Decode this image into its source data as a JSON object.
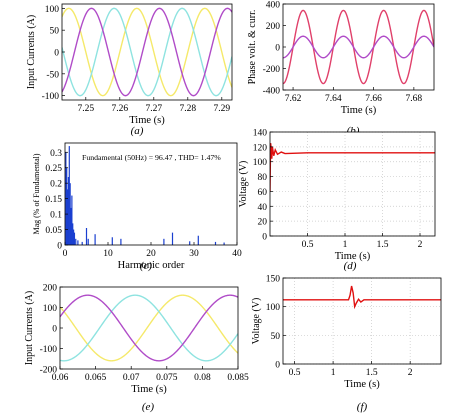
{
  "figure": {
    "panels": [
      {
        "id": "a",
        "caption": "(a)",
        "xlabel": "Time (s)",
        "ylabel": "Input Currents (A)"
      },
      {
        "id": "b",
        "caption": "(b)",
        "xlabel": "Time (s)",
        "ylabel": "Phase volt. & curr."
      },
      {
        "id": "c",
        "caption": "(c)",
        "xlabel": "Harmonic order",
        "ylabel": "Mag (% of Fundamental)",
        "annotation": "Fundamental (50Hz) = 96.47 , THD= 1.47%"
      },
      {
        "id": "d",
        "caption": "(d)",
        "xlabel": "Time (s)",
        "ylabel": "Voltage (V)"
      },
      {
        "id": "e",
        "caption": "(e)",
        "xlabel": "Time (s)",
        "ylabel": "Input Currents (A)"
      },
      {
        "id": "f",
        "caption": "(f)",
        "xlabel": "Time (s)",
        "ylabel": "Voltage (V)"
      }
    ]
  },
  "chart_data": [
    {
      "panel": "a",
      "type": "line",
      "xlim": [
        7.243,
        7.293
      ],
      "ylim": [
        -110,
        110
      ],
      "xticks": [
        7.25,
        7.26,
        7.27,
        7.28,
        7.29
      ],
      "xtick_labels": [
        "7.25",
        "7.26",
        "7.27",
        "7.28",
        "7.29"
      ],
      "yticks": [
        -100,
        -50,
        0,
        50,
        100
      ],
      "ytick_labels": [
        "-100",
        "-50",
        "0",
        "50",
        "100"
      ],
      "grid": false,
      "series": [
        {
          "color": "#f5e96a",
          "amplitude": 100,
          "frequency_hz": 50,
          "phase_deg": 0
        },
        {
          "color": "#8ee3e0",
          "amplitude": 100,
          "frequency_hz": 50,
          "phase_deg": 120
        },
        {
          "color": "#b04cc8",
          "amplitude": 100,
          "frequency_hz": 50,
          "phase_deg": -120
        }
      ]
    },
    {
      "panel": "b",
      "type": "line",
      "xlim": [
        7.615,
        7.69
      ],
      "ylim": [
        -400,
        400
      ],
      "xticks": [
        7.62,
        7.64,
        7.66,
        7.68
      ],
      "xtick_labels": [
        "7.62",
        "7.64",
        "7.66",
        "7.68"
      ],
      "yticks": [
        -400,
        -200,
        0,
        200,
        400
      ],
      "ytick_labels": [
        "-400",
        "-200",
        "0",
        "200",
        "400"
      ],
      "grid": false,
      "series": [
        {
          "color": "#e0406a",
          "amplitude": 340,
          "frequency_hz": 50,
          "phase_deg": 0
        },
        {
          "color": "#b04cc8",
          "amplitude": 100,
          "frequency_hz": 50,
          "phase_deg": 0
        }
      ]
    },
    {
      "panel": "c",
      "type": "bar",
      "xlim": [
        0,
        40
      ],
      "ylim": [
        0,
        0.33
      ],
      "xticks": [
        0,
        10,
        20,
        30,
        40
      ],
      "xtick_labels": [
        "0",
        "10",
        "20",
        "30",
        "40"
      ],
      "yticks": [
        0,
        0.05,
        0.1,
        0.15,
        0.2,
        0.25,
        0.3
      ],
      "ytick_labels": [
        "0",
        "0.05",
        "0.1",
        "0.15",
        "0.2",
        "0.25",
        "0.3"
      ],
      "grid": false,
      "color": "#1a3fd0",
      "x": [
        0.2,
        0.4,
        0.6,
        0.8,
        1.0,
        1.2,
        1.4,
        1.6,
        1.8,
        2.0,
        2.2,
        2.5,
        3.0,
        4.0,
        5.0,
        5.4,
        7.0,
        11.0,
        13.0,
        23.0,
        25.0,
        29.0,
        31.0,
        35.0,
        37.0
      ],
      "values": [
        0.3,
        0.25,
        0.18,
        0.22,
        0.32,
        0.2,
        0.12,
        0.16,
        0.07,
        0.05,
        0.04,
        0.02,
        0.015,
        0.01,
        0.055,
        0.02,
        0.035,
        0.025,
        0.02,
        0.02,
        0.04,
        0.012,
        0.03,
        0.01,
        0.008
      ]
    },
    {
      "panel": "d",
      "type": "line",
      "xlim": [
        0,
        2.2
      ],
      "ylim": [
        0,
        140
      ],
      "xticks": [
        0.5,
        1.0,
        1.5,
        2.0
      ],
      "xtick_labels": [
        "0.5",
        "1",
        "1.5",
        "2"
      ],
      "yticks": [
        0,
        20,
        40,
        60,
        80,
        100,
        120,
        140
      ],
      "ytick_labels": [
        "0",
        "20",
        "40",
        "60",
        "80",
        "100",
        "120",
        "140"
      ],
      "grid": true,
      "series": [
        {
          "color": "#e01010",
          "x": [
            0.0,
            0.008,
            0.016,
            0.024,
            0.032,
            0.05,
            0.07,
            0.1,
            0.15,
            0.2,
            0.5,
            1.0,
            1.5,
            2.0,
            2.2
          ],
          "y": [
            60,
            125,
            118,
            104,
            120,
            108,
            116,
            110,
            113,
            111,
            112,
            112,
            112,
            112,
            112
          ]
        }
      ]
    },
    {
      "panel": "e",
      "type": "line",
      "xlim": [
        0.06,
        0.085
      ],
      "ylim": [
        -200,
        200
      ],
      "xticks": [
        0.06,
        0.065,
        0.07,
        0.075,
        0.08,
        0.085
      ],
      "xtick_labels": [
        "0.06",
        "0.065",
        "0.07",
        "0.075",
        "0.08",
        "0.085"
      ],
      "yticks": [
        -200,
        -100,
        0,
        100,
        200
      ],
      "ytick_labels": [
        "-200",
        "-100",
        "0",
        "100",
        "200"
      ],
      "grid": false,
      "series": [
        {
          "color": "#f5e96a",
          "amplitude": 160,
          "frequency_hz": 50,
          "phase_deg": 140
        },
        {
          "color": "#8ee3e0",
          "amplitude": 160,
          "frequency_hz": 50,
          "phase_deg": 260
        },
        {
          "color": "#b04cc8",
          "amplitude": 160,
          "frequency_hz": 50,
          "phase_deg": 20
        }
      ]
    },
    {
      "panel": "f",
      "type": "line",
      "xlim": [
        0.35,
        2.4
      ],
      "ylim": [
        0,
        150
      ],
      "xticks": [
        0.5,
        1.0,
        1.5,
        2.0
      ],
      "xtick_labels": [
        "0.5",
        "1",
        "1.5",
        "2"
      ],
      "yticks": [
        0,
        50,
        100,
        150
      ],
      "ytick_labels": [
        "0",
        "50",
        "100",
        "150"
      ],
      "grid": true,
      "series": [
        {
          "color": "#e01010",
          "x": [
            0.35,
            1.0,
            1.2,
            1.22,
            1.24,
            1.26,
            1.28,
            1.3,
            1.33,
            1.36,
            1.4,
            1.45,
            2.0,
            2.4
          ],
          "y": [
            112,
            112,
            112,
            120,
            136,
            124,
            100,
            106,
            113,
            108,
            112,
            112,
            112,
            112
          ]
        }
      ]
    }
  ]
}
